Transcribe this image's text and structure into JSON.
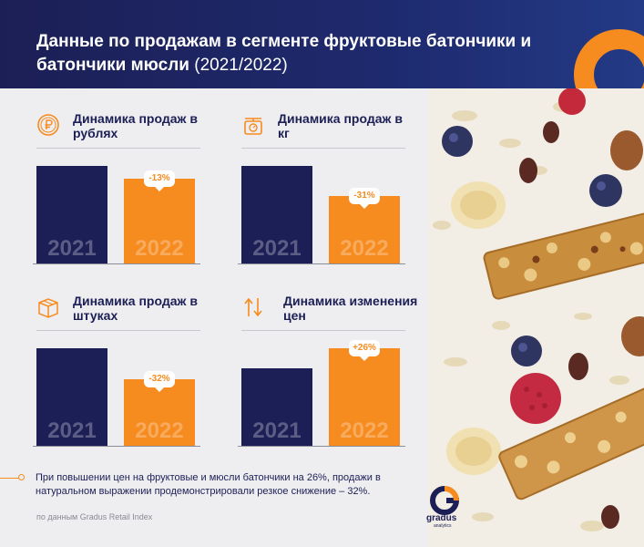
{
  "header": {
    "title_bold": "Данные по продажам в сегменте фруктовые батончики и батончики мюсли",
    "title_period": "(2021/2022)"
  },
  "colors": {
    "navy": "#1c1f55",
    "orange": "#f68b1f"
  },
  "chart_data": [
    {
      "type": "bar",
      "title": "Динамика продаж в рублях",
      "categories": [
        "2021",
        "2022"
      ],
      "values": [
        100,
        87
      ],
      "change_label": "-13%",
      "icon": "ruble-coin-icon"
    },
    {
      "type": "bar",
      "title": "Динамика продаж в кг",
      "categories": [
        "2021",
        "2022"
      ],
      "values": [
        100,
        69
      ],
      "change_label": "-31%",
      "icon": "scale-icon"
    },
    {
      "type": "bar",
      "title": "Динамика продаж в штуках",
      "categories": [
        "2021",
        "2022"
      ],
      "values": [
        100,
        68
      ],
      "change_label": "-32%",
      "icon": "box-icon"
    },
    {
      "type": "bar",
      "title": "Динамика изменения цен",
      "categories": [
        "2021",
        "2022"
      ],
      "values": [
        100,
        126
      ],
      "change_label": "+26%",
      "icon": "arrows-up-down-icon"
    }
  ],
  "footer": {
    "note": "При повышении цен на фруктовые и мюсли батончики на 26%, продажи в натуральном выражении продемонстрировали резкое снижение – 32%.",
    "source": "по данным Gradus Retail Index",
    "logo_name": "gradus",
    "logo_sub": "analytics"
  }
}
